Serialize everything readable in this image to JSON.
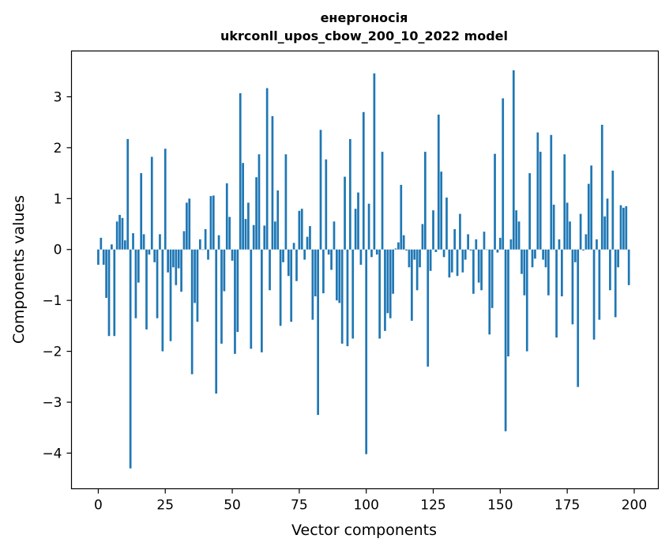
{
  "chart_data": {
    "type": "bar",
    "title_line1": "енергоносія",
    "title_line2": "ukrconll_upos_cbow_200_10_2022 model",
    "xlabel": "Vector components",
    "ylabel": "Components values",
    "xlim": [
      -10,
      209
    ],
    "ylim": [
      -4.7,
      3.9
    ],
    "xticks": [
      0,
      25,
      50,
      75,
      100,
      125,
      150,
      175,
      200
    ],
    "yticks": [
      -4,
      -3,
      -2,
      -1,
      0,
      1,
      2,
      3
    ],
    "bar_color": "#1f77b4",
    "values": [
      -0.3,
      0.23,
      -0.3,
      -0.95,
      -1.7,
      0.1,
      -1.7,
      0.55,
      0.68,
      0.62,
      0.18,
      2.17,
      -4.3,
      0.32,
      -1.35,
      -0.65,
      1.5,
      0.3,
      -1.57,
      -0.1,
      1.82,
      -0.25,
      -1.35,
      0.3,
      -2.0,
      1.98,
      -0.45,
      -1.8,
      -0.35,
      -0.7,
      -0.37,
      -0.83,
      0.36,
      0.92,
      1.0,
      -2.45,
      -1.05,
      -1.42,
      0.2,
      0.0,
      0.4,
      -0.2,
      1.05,
      1.06,
      -2.83,
      0.28,
      -1.85,
      -0.82,
      1.3,
      0.64,
      -0.22,
      -2.05,
      -1.62,
      3.07,
      1.7,
      0.6,
      0.92,
      -1.95,
      0.48,
      1.42,
      1.87,
      -2.02,
      0.47,
      3.17,
      -0.8,
      2.62,
      0.55,
      1.16,
      -1.5,
      -0.25,
      1.87,
      -0.52,
      -1.42,
      0.13,
      -0.62,
      0.76,
      0.8,
      -0.2,
      0.25,
      0.46,
      -1.38,
      -0.92,
      -3.25,
      2.35,
      -0.86,
      1.77,
      -0.1,
      -0.4,
      0.55,
      -1.0,
      -1.05,
      -1.85,
      1.43,
      -1.9,
      2.17,
      -1.75,
      0.8,
      1.12,
      -0.3,
      2.7,
      -4.02,
      0.9,
      -0.15,
      3.46,
      -0.1,
      -1.75,
      1.92,
      -1.6,
      -1.25,
      -1.35,
      -0.87,
      0.02,
      0.14,
      1.27,
      0.28,
      -0.02,
      -0.35,
      -1.4,
      -0.2,
      -0.8,
      -0.35,
      0.5,
      1.92,
      -2.3,
      -0.42,
      0.77,
      -0.05,
      2.65,
      1.53,
      -0.15,
      1.02,
      -0.55,
      -0.45,
      0.4,
      -0.52,
      0.7,
      -0.45,
      -0.2,
      0.3,
      -0.02,
      -0.87,
      0.2,
      -0.65,
      -0.8,
      0.35,
      0.0,
      -1.67,
      -1.15,
      1.88,
      -0.06,
      0.23,
      2.97,
      -3.57,
      -2.1,
      0.2,
      3.52,
      0.77,
      0.55,
      -0.48,
      -0.9,
      -2.0,
      1.5,
      -0.35,
      -0.18,
      2.3,
      1.92,
      -0.2,
      -0.35,
      -0.9,
      2.25,
      0.88,
      -1.73,
      0.2,
      -0.92,
      1.87,
      0.92,
      0.55,
      -1.47,
      -0.25,
      -2.7,
      0.7,
      -0.02,
      0.3,
      1.29,
      1.65,
      -1.77,
      0.2,
      -1.38,
      2.45,
      0.65,
      1.0,
      -0.8,
      1.55,
      -1.33,
      -0.35,
      0.87,
      0.82,
      0.85,
      -0.7
    ]
  }
}
